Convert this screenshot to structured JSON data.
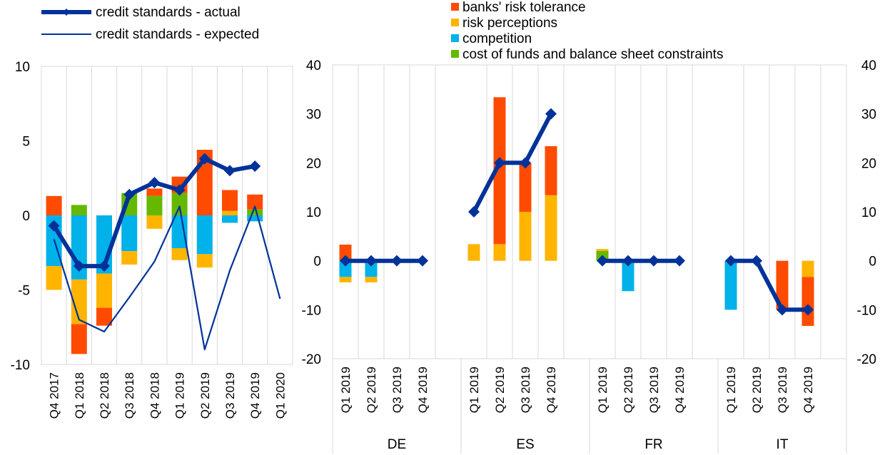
{
  "colors": {
    "banks_risk_tolerance": "#ff4b00",
    "risk_perceptions": "#ffb400",
    "competition": "#00b1ea",
    "cost_of_funds": "#65b800",
    "actual": "#003299",
    "expected": "#003299",
    "grid": "#d9d9d9"
  },
  "legend": {
    "actual": "credit standards - actual",
    "expected": "credit standards - expected",
    "banks_risk_tolerance": "banks' risk tolerance",
    "risk_perceptions": "risk perceptions",
    "competition": "competition",
    "cost_of_funds": "cost of funds and balance sheet constraints"
  },
  "chart_data": [
    {
      "type": "bar",
      "stacked": true,
      "panel": "euro area",
      "categories": [
        "Q4 2017",
        "Q1 2018",
        "Q2 2018",
        "Q3 2018",
        "Q4 2018",
        "Q1 2019",
        "Q2 2019",
        "Q3 2019",
        "Q4 2019",
        "Q1 2020"
      ],
      "ylim": [
        -10,
        10
      ],
      "yticks": [
        -10,
        -5,
        0,
        5,
        10
      ],
      "grid": true,
      "series": [
        {
          "key": "cost_of_funds",
          "name": "cost of funds and balance sheet constraints",
          "values": [
            0,
            0.7,
            0,
            1.5,
            1.3,
            1.5,
            0,
            0,
            0.4,
            null
          ]
        },
        {
          "key": "competition",
          "name": "competition",
          "values": [
            -3.4,
            -4.3,
            -3.9,
            -2.4,
            0,
            -2.2,
            -2.6,
            -0.5,
            -0.4,
            null
          ]
        },
        {
          "key": "risk_perceptions",
          "name": "risk perceptions",
          "values": [
            -1.6,
            -3.0,
            -2.3,
            -0.9,
            -0.9,
            -0.8,
            -0.9,
            0.3,
            0,
            null
          ]
        },
        {
          "key": "banks_risk_tolerance",
          "name": "banks' risk tolerance",
          "values": [
            1.3,
            -2.0,
            -1.2,
            0,
            0.5,
            1.1,
            4.4,
            1.4,
            1.0,
            null
          ]
        }
      ],
      "lines": [
        {
          "key": "actual",
          "name": "credit standards - actual",
          "values": [
            -0.7,
            -3.4,
            -3.4,
            1.4,
            2.2,
            1.7,
            3.8,
            3.0,
            3.3,
            null
          ]
        },
        {
          "key": "expected",
          "name": "credit standards - expected",
          "values": [
            -1.6,
            -7.0,
            -7.8,
            -5.5,
            -3.1,
            0.6,
            -9.0,
            -3.7,
            0.6,
            -5.6
          ]
        }
      ]
    },
    {
      "type": "bar",
      "stacked": true,
      "panel": "countries",
      "groups": [
        "DE",
        "ES",
        "FR",
        "IT"
      ],
      "categories": [
        "Q1 2019",
        "Q2 2019",
        "Q3 2019",
        "Q4 2019"
      ],
      "ylim": [
        -20,
        40
      ],
      "yticks": [
        -20,
        -10,
        0,
        10,
        20,
        30,
        40
      ],
      "grid": true,
      "series": [
        {
          "key": "cost_of_funds",
          "name": "cost of funds and balance sheet constraints",
          "values": {
            "DE": [
              0,
              0,
              0,
              0
            ],
            "ES": [
              0,
              0,
              0,
              0
            ],
            "FR": [
              2.0,
              0,
              0,
              0
            ],
            "IT": [
              0,
              0,
              0,
              0
            ]
          }
        },
        {
          "key": "competition",
          "name": "competition",
          "values": {
            "DE": [
              -3.3,
              -3.3,
              0,
              0
            ],
            "ES": [
              0,
              0,
              0,
              0
            ],
            "FR": [
              0,
              -6.2,
              0,
              0
            ],
            "IT": [
              -10.0,
              0,
              0,
              0
            ]
          }
        },
        {
          "key": "risk_perceptions",
          "name": "risk perceptions",
          "values": {
            "DE": [
              -1.1,
              -1.1,
              0,
              0
            ],
            "ES": [
              3.4,
              3.4,
              10.0,
              13.4
            ],
            "FR": [
              0.4,
              0,
              0,
              0
            ],
            "IT": [
              0,
              0,
              0,
              -3.3
            ]
          }
        },
        {
          "key": "banks_risk_tolerance",
          "name": "banks' risk tolerance",
          "values": {
            "DE": [
              3.3,
              0,
              0,
              0
            ],
            "ES": [
              0,
              30.0,
              10.0,
              10.0
            ],
            "FR": [
              0,
              0,
              0,
              0
            ],
            "IT": [
              0,
              0,
              -10.0,
              -10.0
            ]
          }
        }
      ],
      "lines": [
        {
          "key": "actual",
          "name": "credit standards - actual",
          "values": {
            "DE": [
              0,
              0,
              0,
              0
            ],
            "ES": [
              10,
              20,
              20,
              30
            ],
            "FR": [
              0,
              0,
              0,
              0
            ],
            "IT": [
              0,
              0,
              -10,
              -10
            ]
          }
        }
      ]
    }
  ]
}
